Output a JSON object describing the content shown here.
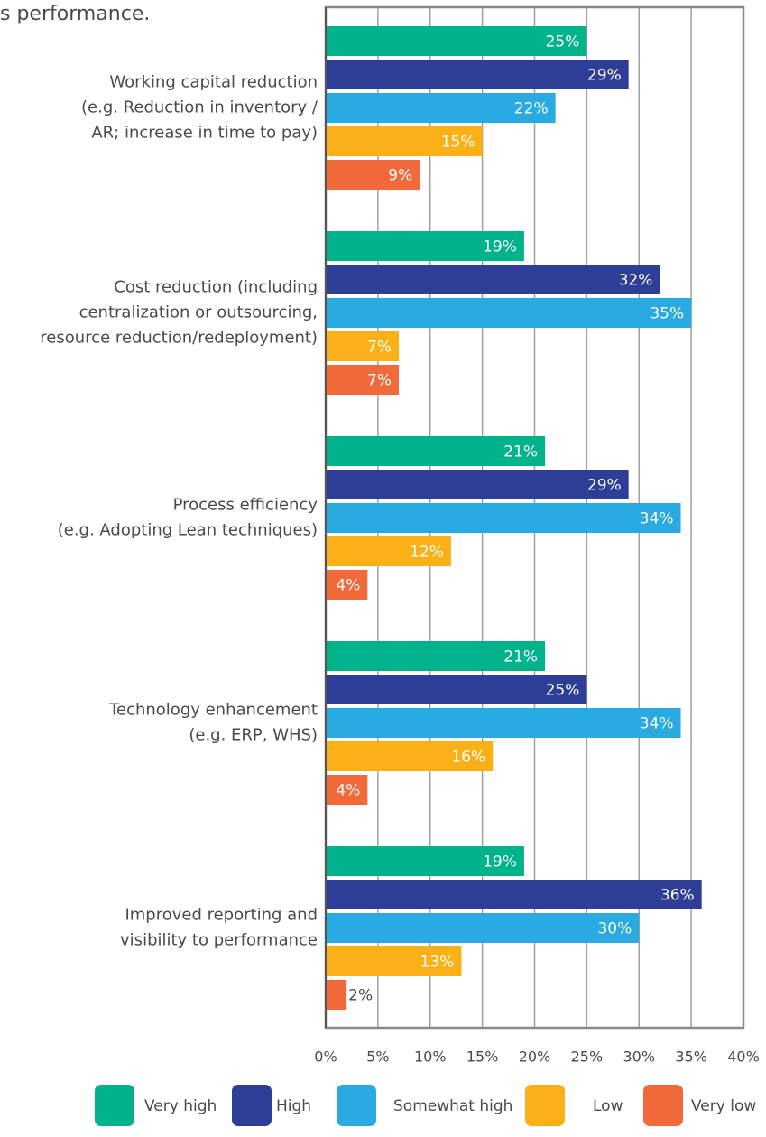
{
  "chart_data": {
    "type": "bar",
    "orientation": "horizontal",
    "title": "s performance.",
    "categories": [
      [
        "Working capital reduction",
        "(e.g. Reduction in inventory /",
        "AR; increase in time to pay)"
      ],
      [
        "Cost reduction (including",
        "centralization or outsourcing,",
        "resource reduction/redeployment)"
      ],
      [
        "Process efficiency",
        "(e.g. Adopting Lean techniques)"
      ],
      [
        "Technology enhancement",
        "(e.g. ERP, WHS)"
      ],
      [
        "Improved reporting and",
        "visibility to performance"
      ]
    ],
    "series": [
      {
        "name": "Very high",
        "color": "#00b38a",
        "values": [
          25,
          19,
          21,
          21,
          19
        ],
        "value_labels": [
          "25%",
          "19%",
          "21%",
          "21%",
          "19%"
        ]
      },
      {
        "name": "High",
        "color": "#2e3e96",
        "values": [
          29,
          32,
          29,
          25,
          36
        ],
        "value_labels": [
          "29%",
          "32%",
          "29%",
          "25%",
          "36%"
        ]
      },
      {
        "name": "Somewhat high",
        "color": "#29abe2",
        "values": [
          22,
          35,
          34,
          34,
          30
        ],
        "value_labels": [
          "22%",
          "35%",
          "34%",
          "34%",
          "30%"
        ]
      },
      {
        "name": "Low",
        "color": "#fbb017",
        "values": [
          15,
          7,
          12,
          16,
          13
        ],
        "value_labels": [
          "15%",
          "7%",
          "12%",
          "16%",
          "13%"
        ]
      },
      {
        "name": "Very low",
        "color": "#f26a3a",
        "values": [
          9,
          7,
          4,
          4,
          2
        ],
        "value_labels": [
          "9%",
          "7%",
          "4%",
          "4%",
          "2%"
        ]
      }
    ],
    "xlim": [
      0,
      40
    ],
    "xticks": [
      {
        "value": 0,
        "label": "0%"
      },
      {
        "value": 5,
        "label": "5%"
      },
      {
        "value": 10,
        "label": "10%"
      },
      {
        "value": 15,
        "label": "15%"
      },
      {
        "value": 20,
        "label": "20%"
      },
      {
        "value": 25,
        "label": "25%"
      },
      {
        "value": 30,
        "label": "30%"
      },
      {
        "value": 35,
        "label": "35%"
      },
      {
        "value": 40,
        "label": "40%"
      }
    ],
    "grid": true,
    "legend": "bottom"
  }
}
